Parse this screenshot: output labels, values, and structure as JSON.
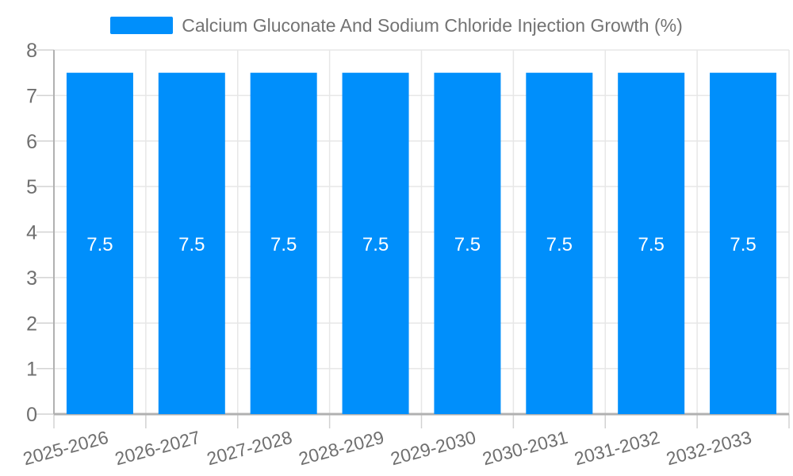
{
  "legend": {
    "series_label": "Calcium Gluconate And Sodium Chloride Injection Growth (%)"
  },
  "colors": {
    "bar": "#008FFB",
    "grid": "#e7e7e7",
    "axis": "#b1b1b1",
    "tick": "#d2d2d2",
    "axis_label_text": "#6f6f6f",
    "title_text": "#737373",
    "bar_label_text": "#ffffff",
    "background": "#ffffff"
  },
  "chart_data": {
    "type": "bar",
    "title": "Calcium Gluconate And Sodium Chloride Injection Growth (%)",
    "categories": [
      "2025-2026",
      "2026-2027",
      "2027-2028",
      "2028-2029",
      "2029-2030",
      "2030-2031",
      "2031-2032",
      "2032-2033"
    ],
    "series": [
      {
        "name": "Calcium Gluconate And Sodium Chloride Injection Growth (%)",
        "values": [
          7.5,
          7.5,
          7.5,
          7.5,
          7.5,
          7.5,
          7.5,
          7.5
        ]
      }
    ],
    "bar_value_labels": [
      "7.5",
      "7.5",
      "7.5",
      "7.5",
      "7.5",
      "7.5",
      "7.5",
      "7.5"
    ],
    "y_tick_labels": [
      "0",
      "1",
      "2",
      "3",
      "4",
      "5",
      "6",
      "7",
      "8"
    ],
    "xlabel": "",
    "ylabel": "",
    "ylim": [
      0,
      8
    ],
    "ytick_step": 1,
    "grid": true,
    "legend_position": "top",
    "x_label_rotation_deg": -15
  }
}
